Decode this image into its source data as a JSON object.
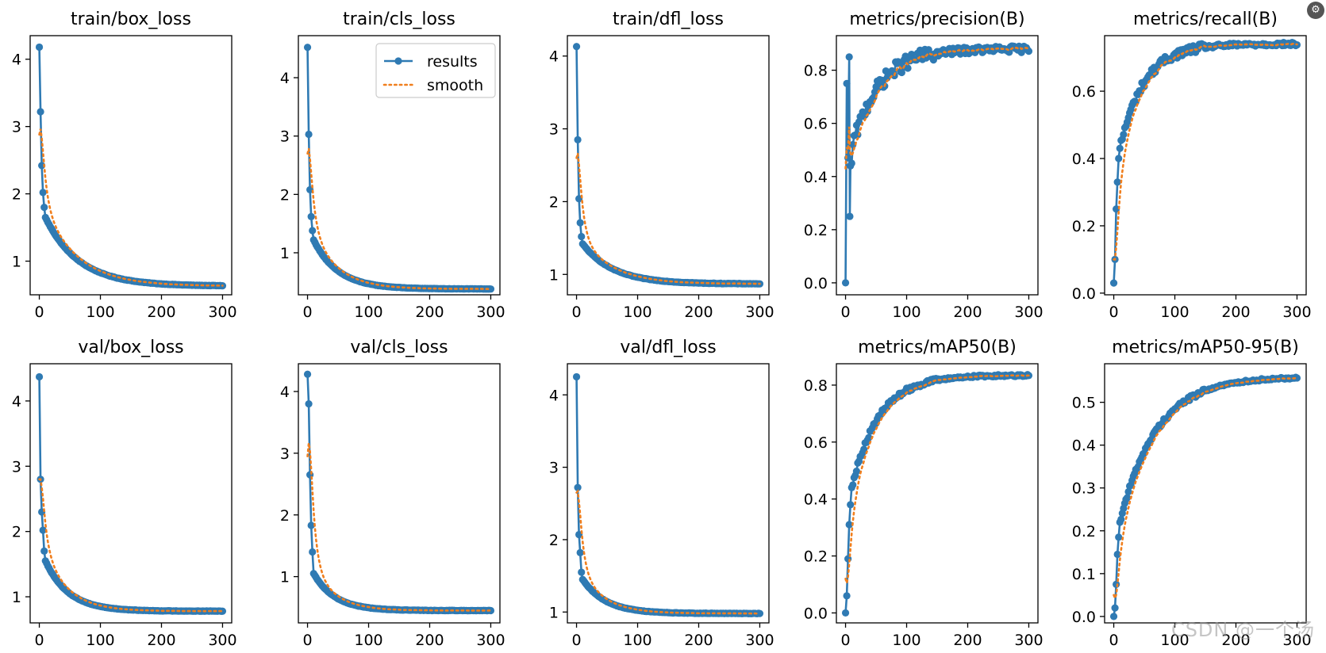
{
  "colors": {
    "results": "#2f7ab3",
    "smooth": "#f07f1e",
    "frame": "#000000",
    "background": "#ffffff"
  },
  "legend": {
    "results_label": "results",
    "smooth_label": "smooth"
  },
  "watermark": "CSDN @一个汤",
  "corner_icon": "settings-badge-icon",
  "chart_data": [
    {
      "type": "line",
      "title": "train/box_loss",
      "xlabel": "",
      "ylabel": "",
      "xlim": [
        -15,
        315
      ],
      "ylim": [
        0.5,
        4.35
      ],
      "xticks": [
        0,
        100,
        200,
        300
      ],
      "yticks": [
        1,
        2,
        3,
        4
      ],
      "legend": false,
      "kind": "decay",
      "points": [
        [
          0,
          4.18
        ],
        [
          2,
          3.22
        ],
        [
          4,
          2.42
        ],
        [
          6,
          2.02
        ],
        [
          8,
          1.8
        ],
        [
          10,
          1.65
        ]
      ],
      "end": 0.63,
      "ref": [
        10,
        1.65
      ],
      "tau": 55,
      "smooth_start": 2.88
    },
    {
      "type": "line",
      "title": "train/cls_loss",
      "xlabel": "",
      "ylabel": "",
      "xlim": [
        -15,
        315
      ],
      "ylim": [
        0.28,
        4.72
      ],
      "xticks": [
        0,
        100,
        200,
        300
      ],
      "yticks": [
        1,
        2,
        3,
        4
      ],
      "legend": true,
      "kind": "decay",
      "points": [
        [
          0,
          4.52
        ],
        [
          2,
          3.03
        ],
        [
          4,
          2.08
        ],
        [
          6,
          1.62
        ],
        [
          8,
          1.38
        ],
        [
          10,
          1.22
        ]
      ],
      "end": 0.38,
      "ref": [
        10,
        1.22
      ],
      "tau": 40,
      "smooth_start": 2.7
    },
    {
      "type": "line",
      "title": "train/dfl_loss",
      "xlabel": "",
      "ylabel": "",
      "xlim": [
        -15,
        315
      ],
      "ylim": [
        0.72,
        4.28
      ],
      "xticks": [
        0,
        100,
        200,
        300
      ],
      "yticks": [
        1,
        2,
        3,
        4
      ],
      "legend": false,
      "kind": "decay",
      "points": [
        [
          0,
          4.13
        ],
        [
          2,
          2.85
        ],
        [
          4,
          2.04
        ],
        [
          6,
          1.71
        ],
        [
          8,
          1.52
        ],
        [
          10,
          1.42
        ]
      ],
      "end": 0.87,
      "ref": [
        10,
        1.42
      ],
      "tau": 50,
      "smooth_start": 2.6
    },
    {
      "type": "line",
      "title": "metrics/precision(B)",
      "xlabel": "",
      "ylabel": "",
      "xlim": [
        -15,
        315
      ],
      "ylim": [
        -0.045,
        0.93
      ],
      "xticks": [
        0,
        100,
        200,
        300
      ],
      "yticks": [
        0.0,
        0.2,
        0.4,
        0.6,
        0.8
      ],
      "legend": false,
      "kind": "rise",
      "points": [
        [
          0,
          0.0
        ],
        [
          2,
          0.75
        ],
        [
          4,
          0.47
        ],
        [
          6,
          0.85
        ],
        [
          7,
          0.25
        ],
        [
          8,
          0.44
        ],
        [
          10,
          0.45
        ],
        [
          12,
          0.52
        ]
      ],
      "end": 0.88,
      "ref": [
        12,
        0.52
      ],
      "tau": 45,
      "noise": 0.028,
      "smooth_start": 0.43
    },
    {
      "type": "line",
      "title": "metrics/recall(B)",
      "xlabel": "",
      "ylabel": "",
      "xlim": [
        -15,
        315
      ],
      "ylim": [
        -0.005,
        0.765
      ],
      "xticks": [
        0,
        100,
        200,
        300
      ],
      "yticks": [
        0.0,
        0.2,
        0.4,
        0.6
      ],
      "legend": false,
      "kind": "rise",
      "points": [
        [
          0,
          0.03
        ],
        [
          2,
          0.1
        ],
        [
          4,
          0.25
        ],
        [
          6,
          0.33
        ],
        [
          8,
          0.4
        ],
        [
          10,
          0.43
        ]
      ],
      "end": 0.74,
      "ref": [
        10,
        0.43
      ],
      "tau": 40,
      "noise": 0.012,
      "smooth_start": 0.1
    },
    {
      "type": "line",
      "title": "val/box_loss",
      "xlabel": "",
      "ylabel": "",
      "xlim": [
        -15,
        315
      ],
      "ylim": [
        0.6,
        4.57
      ],
      "xticks": [
        0,
        100,
        200,
        300
      ],
      "yticks": [
        1,
        2,
        3,
        4
      ],
      "legend": false,
      "kind": "decay",
      "points": [
        [
          0,
          4.37
        ],
        [
          2,
          2.8
        ],
        [
          4,
          2.3
        ],
        [
          6,
          2.02
        ],
        [
          8,
          1.7
        ],
        [
          10,
          1.55
        ]
      ],
      "end": 0.78,
      "ref": [
        10,
        1.55
      ],
      "tau": 38,
      "smooth_start": 2.8
    },
    {
      "type": "line",
      "title": "val/cls_loss",
      "xlabel": "",
      "ylabel": "",
      "xlim": [
        -15,
        315
      ],
      "ylim": [
        0.25,
        4.45
      ],
      "xticks": [
        0,
        100,
        200,
        300
      ],
      "yticks": [
        1,
        2,
        3,
        4
      ],
      "legend": false,
      "kind": "decay",
      "points": [
        [
          0,
          4.28
        ],
        [
          2,
          3.8
        ],
        [
          4,
          2.65
        ],
        [
          6,
          1.83
        ],
        [
          8,
          1.4
        ],
        [
          10,
          1.05
        ]
      ],
      "end": 0.45,
      "ref": [
        10,
        1.05
      ],
      "tau": 35,
      "smooth_start": 2.95
    },
    {
      "type": "line",
      "title": "val/dfl_loss",
      "xlabel": "",
      "ylabel": "",
      "xlim": [
        -15,
        315
      ],
      "ylim": [
        0.85,
        4.43
      ],
      "xticks": [
        0,
        100,
        200,
        300
      ],
      "yticks": [
        1,
        2,
        3,
        4
      ],
      "legend": false,
      "kind": "decay",
      "points": [
        [
          0,
          4.25
        ],
        [
          2,
          2.72
        ],
        [
          4,
          2.07
        ],
        [
          6,
          1.82
        ],
        [
          8,
          1.55
        ],
        [
          10,
          1.45
        ]
      ],
      "end": 0.98,
      "ref": [
        10,
        1.45
      ],
      "tau": 38,
      "smooth_start": 2.65
    },
    {
      "type": "line",
      "title": "metrics/mAP50(B)",
      "xlabel": "",
      "ylabel": "",
      "xlim": [
        -15,
        315
      ],
      "ylim": [
        -0.035,
        0.875
      ],
      "xticks": [
        0,
        100,
        200,
        300
      ],
      "yticks": [
        0.0,
        0.2,
        0.4,
        0.6,
        0.8
      ],
      "legend": false,
      "kind": "rise",
      "points": [
        [
          0,
          0.0
        ],
        [
          2,
          0.06
        ],
        [
          4,
          0.19
        ],
        [
          6,
          0.31
        ],
        [
          8,
          0.38
        ],
        [
          10,
          0.44
        ]
      ],
      "end": 0.835,
      "ref": [
        10,
        0.44
      ],
      "tau": 45,
      "noise": 0.008,
      "smooth_start": 0.12
    },
    {
      "type": "line",
      "title": "metrics/mAP50-95(B)",
      "xlabel": "",
      "ylabel": "",
      "xlim": [
        -15,
        315
      ],
      "ylim": [
        -0.015,
        0.59
      ],
      "xticks": [
        0,
        100,
        200,
        300
      ],
      "yticks": [
        0.0,
        0.1,
        0.2,
        0.3,
        0.4,
        0.5
      ],
      "legend": false,
      "kind": "rise",
      "points": [
        [
          0,
          0.0
        ],
        [
          2,
          0.02
        ],
        [
          4,
          0.075
        ],
        [
          6,
          0.145
        ],
        [
          8,
          0.185
        ],
        [
          10,
          0.22
        ]
      ],
      "end": 0.56,
      "ref": [
        10,
        0.22
      ],
      "tau": 60,
      "noise": 0.005,
      "smooth_start": 0.05
    }
  ]
}
